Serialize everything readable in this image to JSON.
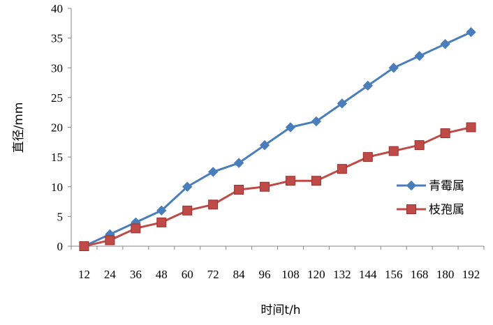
{
  "chart_data": {
    "type": "line",
    "title": "",
    "xlabel": "时间t/h",
    "ylabel": "直径/mm",
    "x": [
      12,
      24,
      36,
      48,
      60,
      72,
      84,
      96,
      108,
      120,
      132,
      144,
      156,
      168,
      180,
      192
    ],
    "ylim": [
      0,
      40
    ],
    "yticks": [
      0,
      5,
      10,
      15,
      20,
      25,
      30,
      35,
      40
    ],
    "grid": false,
    "legend_position": "right",
    "series": [
      {
        "name": "青霉属",
        "color": "#4a7ebb",
        "marker": "diamond",
        "values": [
          0,
          2,
          4,
          6,
          10,
          12.5,
          14,
          17,
          20,
          21,
          24,
          27,
          30,
          32,
          34,
          36
        ]
      },
      {
        "name": "枝孢属",
        "color": "#be4b48",
        "marker": "square",
        "values": [
          0,
          1,
          3,
          4,
          6,
          7,
          9.5,
          10,
          11,
          11,
          13,
          15,
          16,
          17,
          19,
          20
        ]
      }
    ]
  }
}
